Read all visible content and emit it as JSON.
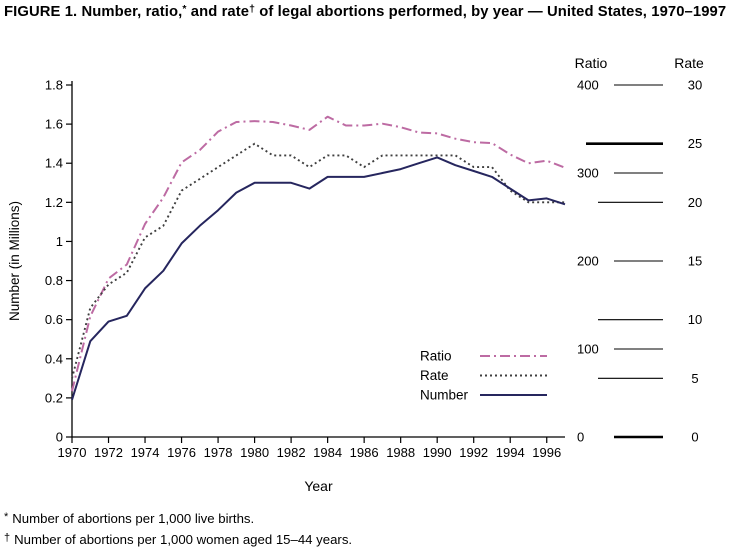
{
  "title": {
    "part1": "FIGURE 1. Number, ratio,",
    "sup1": "*",
    "part2": " and rate",
    "sup2": "†",
    "part3": " of legal abortions performed, by year — United States, 1970–1997"
  },
  "footnotes": [
    {
      "marker": "*",
      "text": "Number of abortions per 1,000 live births."
    },
    {
      "marker": "†",
      "text": "Number of abortions per 1,000 women aged 15–44 years."
    }
  ],
  "chart_data": {
    "type": "line",
    "title": "FIGURE 1. Number, ratio,* and rate† of legal abortions performed, by year — United States, 1970–1997",
    "x": [
      1970,
      1971,
      1972,
      1973,
      1974,
      1975,
      1976,
      1977,
      1978,
      1979,
      1980,
      1981,
      1982,
      1983,
      1984,
      1985,
      1986,
      1987,
      1988,
      1989,
      1990,
      1991,
      1992,
      1993,
      1994,
      1995,
      1996,
      1997
    ],
    "series": [
      {
        "name": "Ratio",
        "axis": "ratio",
        "values": [
          52,
          137,
          180,
          196,
          242,
          272,
          312,
          326,
          347,
          358,
          359,
          358,
          354,
          349,
          364,
          354,
          354,
          356,
          352,
          346,
          345,
          339,
          335,
          334,
          321,
          311,
          314,
          306
        ]
      },
      {
        "name": "Rate",
        "axis": "rate",
        "values": [
          5,
          11,
          13,
          14,
          17,
          18,
          21,
          22,
          23,
          24,
          25,
          24,
          24,
          23,
          24,
          24,
          23,
          24,
          24,
          24,
          24,
          24,
          23,
          23,
          21,
          20,
          20,
          20
        ]
      },
      {
        "name": "Number",
        "axis": "number",
        "values": [
          0.19,
          0.49,
          0.59,
          0.62,
          0.76,
          0.85,
          0.99,
          1.08,
          1.16,
          1.25,
          1.3,
          1.3,
          1.3,
          1.27,
          1.33,
          1.33,
          1.33,
          1.35,
          1.37,
          1.4,
          1.43,
          1.39,
          1.36,
          1.33,
          1.27,
          1.21,
          1.22,
          1.19
        ]
      }
    ],
    "axes": {
      "number": {
        "label": "Number (in Millions)",
        "min": 0,
        "max": 1.8,
        "ticks": [
          1.8,
          1.6,
          1.4,
          1.2,
          1,
          0.8,
          0.6,
          0.4,
          0.2,
          0
        ],
        "tick_labels": [
          "1.8",
          "1.6",
          "1.4",
          "1.2",
          "1",
          "0.8",
          "0.6",
          "0.4",
          "0.2",
          "0"
        ]
      },
      "ratio": {
        "label": "Ratio",
        "min": 0,
        "max": 400,
        "ticks": [
          400,
          300,
          200,
          100,
          0
        ],
        "tick_labels": [
          "400",
          "300",
          "200",
          "100",
          "0"
        ]
      },
      "rate": {
        "label": "Rate",
        "min": 0,
        "max": 30,
        "ticks": [
          30,
          25,
          20,
          15,
          10,
          5,
          0
        ],
        "tick_labels": [
          "30",
          "25",
          "20",
          "15",
          "10",
          "5",
          "0"
        ]
      },
      "x": {
        "label": "Year",
        "min": 1970,
        "max": 1997,
        "ticks": [
          1970,
          1972,
          1974,
          1976,
          1978,
          1980,
          1982,
          1984,
          1986,
          1988,
          1990,
          1992,
          1994,
          1996
        ]
      }
    },
    "legend": [
      "Ratio",
      "Rate",
      "Number"
    ],
    "legend_position": "inside-lower-right",
    "grid": false,
    "colors": {
      "ratio": "#bd6ba3",
      "rate": "#3f3f3f",
      "number": "#26265e",
      "axis": "#000000"
    }
  }
}
